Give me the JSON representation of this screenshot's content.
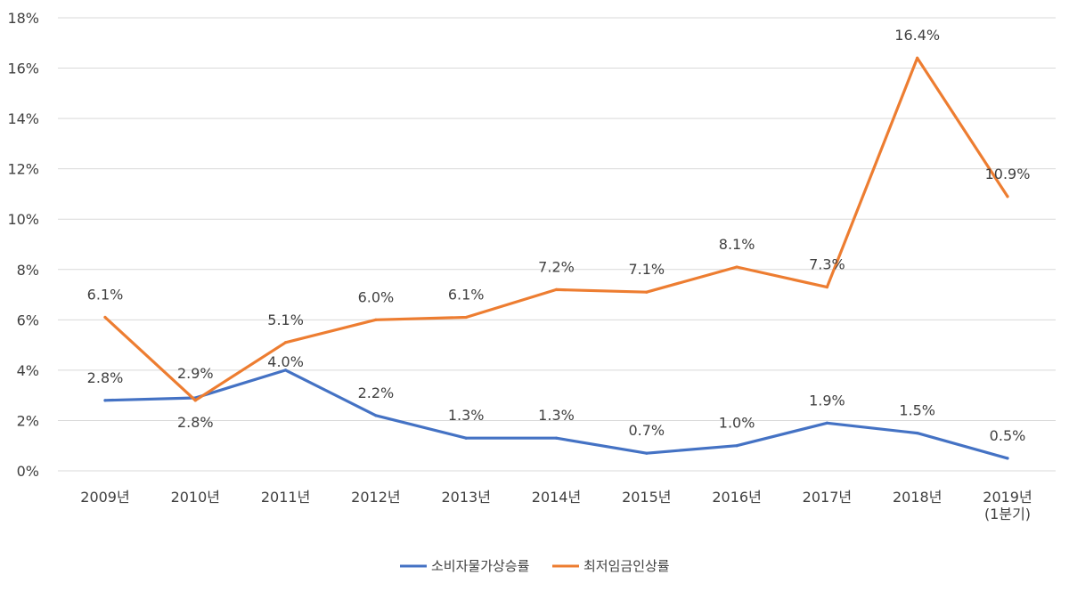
{
  "chart_data": {
    "type": "line",
    "categories": [
      "2009년",
      "2010년",
      "2011년",
      "2012년",
      "2013년",
      "2014년",
      "2015년",
      "2016년",
      "2017년",
      "2018년",
      "2019년\n(1분기)"
    ],
    "series": [
      {
        "name": "소비자물가상승률",
        "color": "#4472c4",
        "values": [
          2.8,
          2.9,
          4.0,
          2.2,
          1.3,
          1.3,
          0.7,
          1.0,
          1.9,
          1.5,
          0.5
        ],
        "labels": [
          "2.8%",
          "2.9%",
          "4.0%",
          "2.2%",
          "1.3%",
          "1.3%",
          "0.7%",
          "1.0%",
          "1.9%",
          "1.5%",
          "0.5%"
        ]
      },
      {
        "name": "최저임금인상률",
        "color": "#ed7d31",
        "values": [
          6.1,
          2.8,
          5.1,
          6.0,
          6.1,
          7.2,
          7.1,
          8.1,
          7.3,
          16.4,
          10.9
        ],
        "labels": [
          "6.1%",
          "2.8%",
          "5.1%",
          "6.0%",
          "6.1%",
          "7.2%",
          "7.1%",
          "8.1%",
          "7.3%",
          "16.4%",
          "10.9%"
        ]
      }
    ],
    "yticks": [
      "0%",
      "2%",
      "4%",
      "6%",
      "8%",
      "10%",
      "12%",
      "14%",
      "16%",
      "18%"
    ],
    "ylim": [
      0,
      18
    ],
    "grid": true,
    "legend": "bottom-center"
  }
}
